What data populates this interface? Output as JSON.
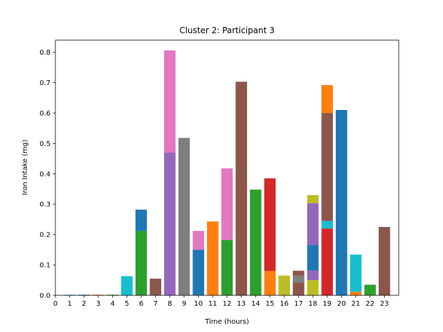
{
  "chart_data": {
    "type": "bar",
    "stacked": true,
    "title": "Cluster 2: Participant 3",
    "xlabel": "Time (hours)",
    "ylabel": "Iron Intake (mg)",
    "xlim": [
      0,
      24
    ],
    "ylim": [
      0,
      0.84
    ],
    "x_ticks": [
      "0",
      "1",
      "2",
      "3",
      "4",
      "5",
      "6",
      "7",
      "8",
      "9",
      "10",
      "11",
      "12",
      "13",
      "14",
      "15",
      "16",
      "17",
      "18",
      "19",
      "20",
      "21",
      "22",
      "23"
    ],
    "y_ticks": [
      "0.0",
      "0.1",
      "0.2",
      "0.3",
      "0.4",
      "0.5",
      "0.6",
      "0.7",
      "0.8"
    ],
    "grid": false,
    "legend": "none",
    "colors": {
      "blue": "#1f77b4",
      "orange": "#ff7f0e",
      "green": "#2ca02c",
      "red": "#d62728",
      "purple": "#9467bd",
      "brown": "#8c564b",
      "pink": "#e377c2",
      "gray": "#7f7f7f",
      "olive": "#bcbd22",
      "cyan": "#17becf"
    },
    "bars": [
      {
        "x": 1,
        "segments": [
          {
            "value": 0.002,
            "color": "#17becf"
          }
        ]
      },
      {
        "x": 2,
        "segments": [
          {
            "value": 0.002,
            "color": "#1f77b4"
          }
        ]
      },
      {
        "x": 3,
        "segments": [
          {
            "value": 0.002,
            "color": "#ff7f0e"
          }
        ]
      },
      {
        "x": 4,
        "segments": [
          {
            "value": 0.002,
            "color": "#2ca02c"
          }
        ]
      },
      {
        "x": 5,
        "segments": [
          {
            "value": 0.063,
            "color": "#17becf"
          }
        ]
      },
      {
        "x": 6,
        "segments": [
          {
            "value": 0.212,
            "color": "#2ca02c"
          },
          {
            "value": 0.07,
            "color": "#1f77b4"
          }
        ]
      },
      {
        "x": 7,
        "segments": [
          {
            "value": 0.055,
            "color": "#8c564b"
          }
        ]
      },
      {
        "x": 8,
        "segments": [
          {
            "value": 0.47,
            "color": "#9467bd"
          },
          {
            "value": 0.336,
            "color": "#e377c2"
          }
        ]
      },
      {
        "x": 9,
        "segments": [
          {
            "value": 0.518,
            "color": "#7f7f7f"
          }
        ]
      },
      {
        "x": 10,
        "segments": [
          {
            "value": 0.15,
            "color": "#1f77b4"
          },
          {
            "value": 0.062,
            "color": "#e377c2"
          }
        ]
      },
      {
        "x": 11,
        "segments": [
          {
            "value": 0.243,
            "color": "#ff7f0e"
          }
        ]
      },
      {
        "x": 12,
        "segments": [
          {
            "value": 0.182,
            "color": "#2ca02c"
          },
          {
            "value": 0.236,
            "color": "#e377c2"
          }
        ]
      },
      {
        "x": 13,
        "segments": [
          {
            "value": 0.703,
            "color": "#8c564b"
          }
        ]
      },
      {
        "x": 14,
        "segments": [
          {
            "value": 0.348,
            "color": "#2ca02c"
          }
        ]
      },
      {
        "x": 15,
        "segments": [
          {
            "value": 0.08,
            "color": "#ff7f0e"
          },
          {
            "value": 0.305,
            "color": "#d62728"
          }
        ]
      },
      {
        "x": 16,
        "segments": [
          {
            "value": 0.065,
            "color": "#bcbd22"
          }
        ]
      },
      {
        "x": 17,
        "segments": [
          {
            "value": 0.042,
            "color": "#8c564b"
          },
          {
            "value": 0.023,
            "color": "#7f7f7f"
          },
          {
            "value": 0.016,
            "color": "#8c564b"
          }
        ]
      },
      {
        "x": 18,
        "segments": [
          {
            "value": 0.05,
            "color": "#bcbd22"
          },
          {
            "value": 0.032,
            "color": "#9467bd"
          },
          {
            "value": 0.083,
            "color": "#1f77b4"
          },
          {
            "value": 0.138,
            "color": "#9467bd"
          },
          {
            "value": 0.027,
            "color": "#bcbd22"
          }
        ]
      },
      {
        "x": 19,
        "segments": [
          {
            "value": 0.22,
            "color": "#d62728"
          },
          {
            "value": 0.025,
            "color": "#17becf"
          },
          {
            "value": 0.355,
            "color": "#8c564b"
          },
          {
            "value": 0.092,
            "color": "#ff7f0e"
          }
        ]
      },
      {
        "x": 20,
        "segments": [
          {
            "value": 0.61,
            "color": "#1f77b4"
          }
        ]
      },
      {
        "x": 21,
        "segments": [
          {
            "value": 0.012,
            "color": "#ff7f0e"
          },
          {
            "value": 0.122,
            "color": "#17becf"
          }
        ]
      },
      {
        "x": 22,
        "segments": [
          {
            "value": 0.035,
            "color": "#2ca02c"
          }
        ]
      },
      {
        "x": 23,
        "segments": [
          {
            "value": 0.225,
            "color": "#8c564b"
          }
        ]
      }
    ]
  }
}
